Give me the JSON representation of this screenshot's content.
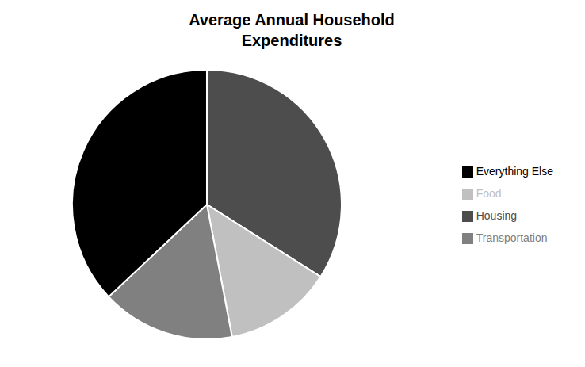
{
  "chart_data": {
    "type": "pie",
    "title": "Average Annual Household\nExpenditures",
    "categories": [
      "Housing",
      "Food",
      "Transportation",
      "Everything Else"
    ],
    "values": [
      34,
      13,
      16,
      37
    ],
    "colors": [
      "#4d4d4d",
      "#c0c0c0",
      "#808080",
      "#000000"
    ],
    "legend": "right"
  }
}
